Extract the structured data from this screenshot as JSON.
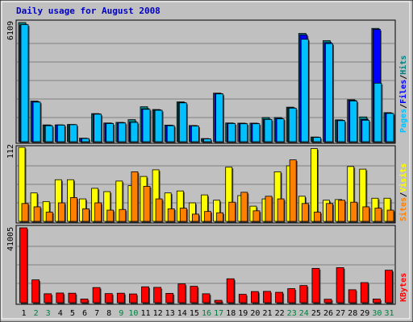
{
  "title": "Daily usage for August 2008",
  "colors": {
    "background": "#c0c0c0",
    "frame": "#ffffff",
    "title": "#0000c0",
    "hits": "#008080",
    "files": "#0000ff",
    "pages": "#00c0ff",
    "visits": "#ffff00",
    "sites": "#ff8000",
    "kbytes": "#ff0000",
    "weekend": "#008040",
    "weekday": "#000000",
    "gridline": "#808080"
  },
  "legend": {
    "hits_label": "Hits",
    "files_label": "Files",
    "pages_label": "Pages",
    "visits_label": "Visits",
    "sites_label": "Sites",
    "kbytes_label": "KBytes",
    "separator": "/"
  },
  "chart_data": [
    {
      "type": "bar",
      "title": "Daily usage for August 2008",
      "panel": "top",
      "max_label": "6109",
      "ymax": 6109,
      "categories": [
        "1",
        "2",
        "3",
        "4",
        "5",
        "6",
        "7",
        "8",
        "9",
        "10",
        "11",
        "12",
        "13",
        "14",
        "15",
        "16",
        "17",
        "18",
        "19",
        "20",
        "21",
        "22",
        "23",
        "24",
        "25",
        "26",
        "27",
        "28",
        "29",
        "30",
        "31"
      ],
      "weekend_days": [
        2,
        3,
        9,
        10,
        16,
        17,
        23,
        24,
        30,
        31
      ],
      "series": [
        {
          "name": "Hits",
          "values": [
            6109,
            2080,
            860,
            860,
            880,
            180,
            1440,
            960,
            990,
            1130,
            1790,
            1650,
            850,
            2040,
            830,
            160,
            2490,
            960,
            950,
            950,
            1240,
            1240,
            1770,
            5550,
            240,
            5180,
            1120,
            2150,
            1270,
            5810,
            1490
          ]
        },
        {
          "name": "Files",
          "values": [
            5980,
            2050,
            840,
            860,
            880,
            170,
            1430,
            950,
            980,
            1000,
            1680,
            1630,
            840,
            2010,
            820,
            150,
            2470,
            950,
            940,
            940,
            1150,
            1190,
            1730,
            5480,
            230,
            5080,
            1100,
            2120,
            1140,
            5760,
            1470
          ]
        },
        {
          "name": "Pages",
          "values": [
            6000,
            2030,
            820,
            850,
            870,
            160,
            1410,
            930,
            960,
            990,
            1660,
            1610,
            820,
            1990,
            800,
            140,
            2450,
            930,
            920,
            920,
            1140,
            1170,
            1720,
            5250,
            220,
            5030,
            1080,
            2090,
            1100,
            3000,
            1450
          ]
        }
      ]
    },
    {
      "type": "bar",
      "panel": "middle",
      "max_label": "112",
      "ymax": 112,
      "categories": [
        "1",
        "2",
        "3",
        "4",
        "5",
        "6",
        "7",
        "8",
        "9",
        "10",
        "11",
        "12",
        "13",
        "14",
        "15",
        "16",
        "17",
        "18",
        "19",
        "20",
        "21",
        "22",
        "23",
        "24",
        "25",
        "26",
        "27",
        "28",
        "29",
        "30",
        "31"
      ],
      "series": [
        {
          "name": "Visits",
          "values": [
            112,
            43,
            30,
            63,
            63,
            34,
            50,
            45,
            61,
            54,
            68,
            78,
            43,
            46,
            28,
            40,
            32,
            82,
            39,
            23,
            34,
            75,
            84,
            38,
            110,
            32,
            33,
            83,
            79,
            35,
            35
          ]
        },
        {
          "name": "Sites",
          "values": [
            27,
            22,
            14,
            28,
            36,
            19,
            28,
            17,
            18,
            75,
            53,
            34,
            19,
            20,
            11,
            15,
            13,
            29,
            44,
            16,
            38,
            34,
            93,
            27,
            14,
            27,
            32,
            29,
            22,
            20,
            17
          ]
        }
      ]
    },
    {
      "type": "bar",
      "panel": "bottom",
      "max_label": "41005",
      "ymax": 41005,
      "categories": [
        "1",
        "2",
        "3",
        "4",
        "5",
        "6",
        "7",
        "8",
        "9",
        "10",
        "11",
        "12",
        "13",
        "14",
        "15",
        "16",
        "17",
        "18",
        "19",
        "20",
        "21",
        "22",
        "23",
        "24",
        "25",
        "26",
        "27",
        "28",
        "29",
        "30",
        "31"
      ],
      "series": [
        {
          "name": "KBytes",
          "values": [
            41005,
            12500,
            4900,
            5300,
            5200,
            2000,
            8300,
            5000,
            5200,
            4800,
            8700,
            8400,
            5100,
            10300,
            9000,
            4900,
            1300,
            13100,
            4600,
            6100,
            6200,
            5700,
            7700,
            9400,
            18800,
            1900,
            19200,
            7100,
            11000,
            2000,
            17800
          ]
        }
      ]
    }
  ]
}
